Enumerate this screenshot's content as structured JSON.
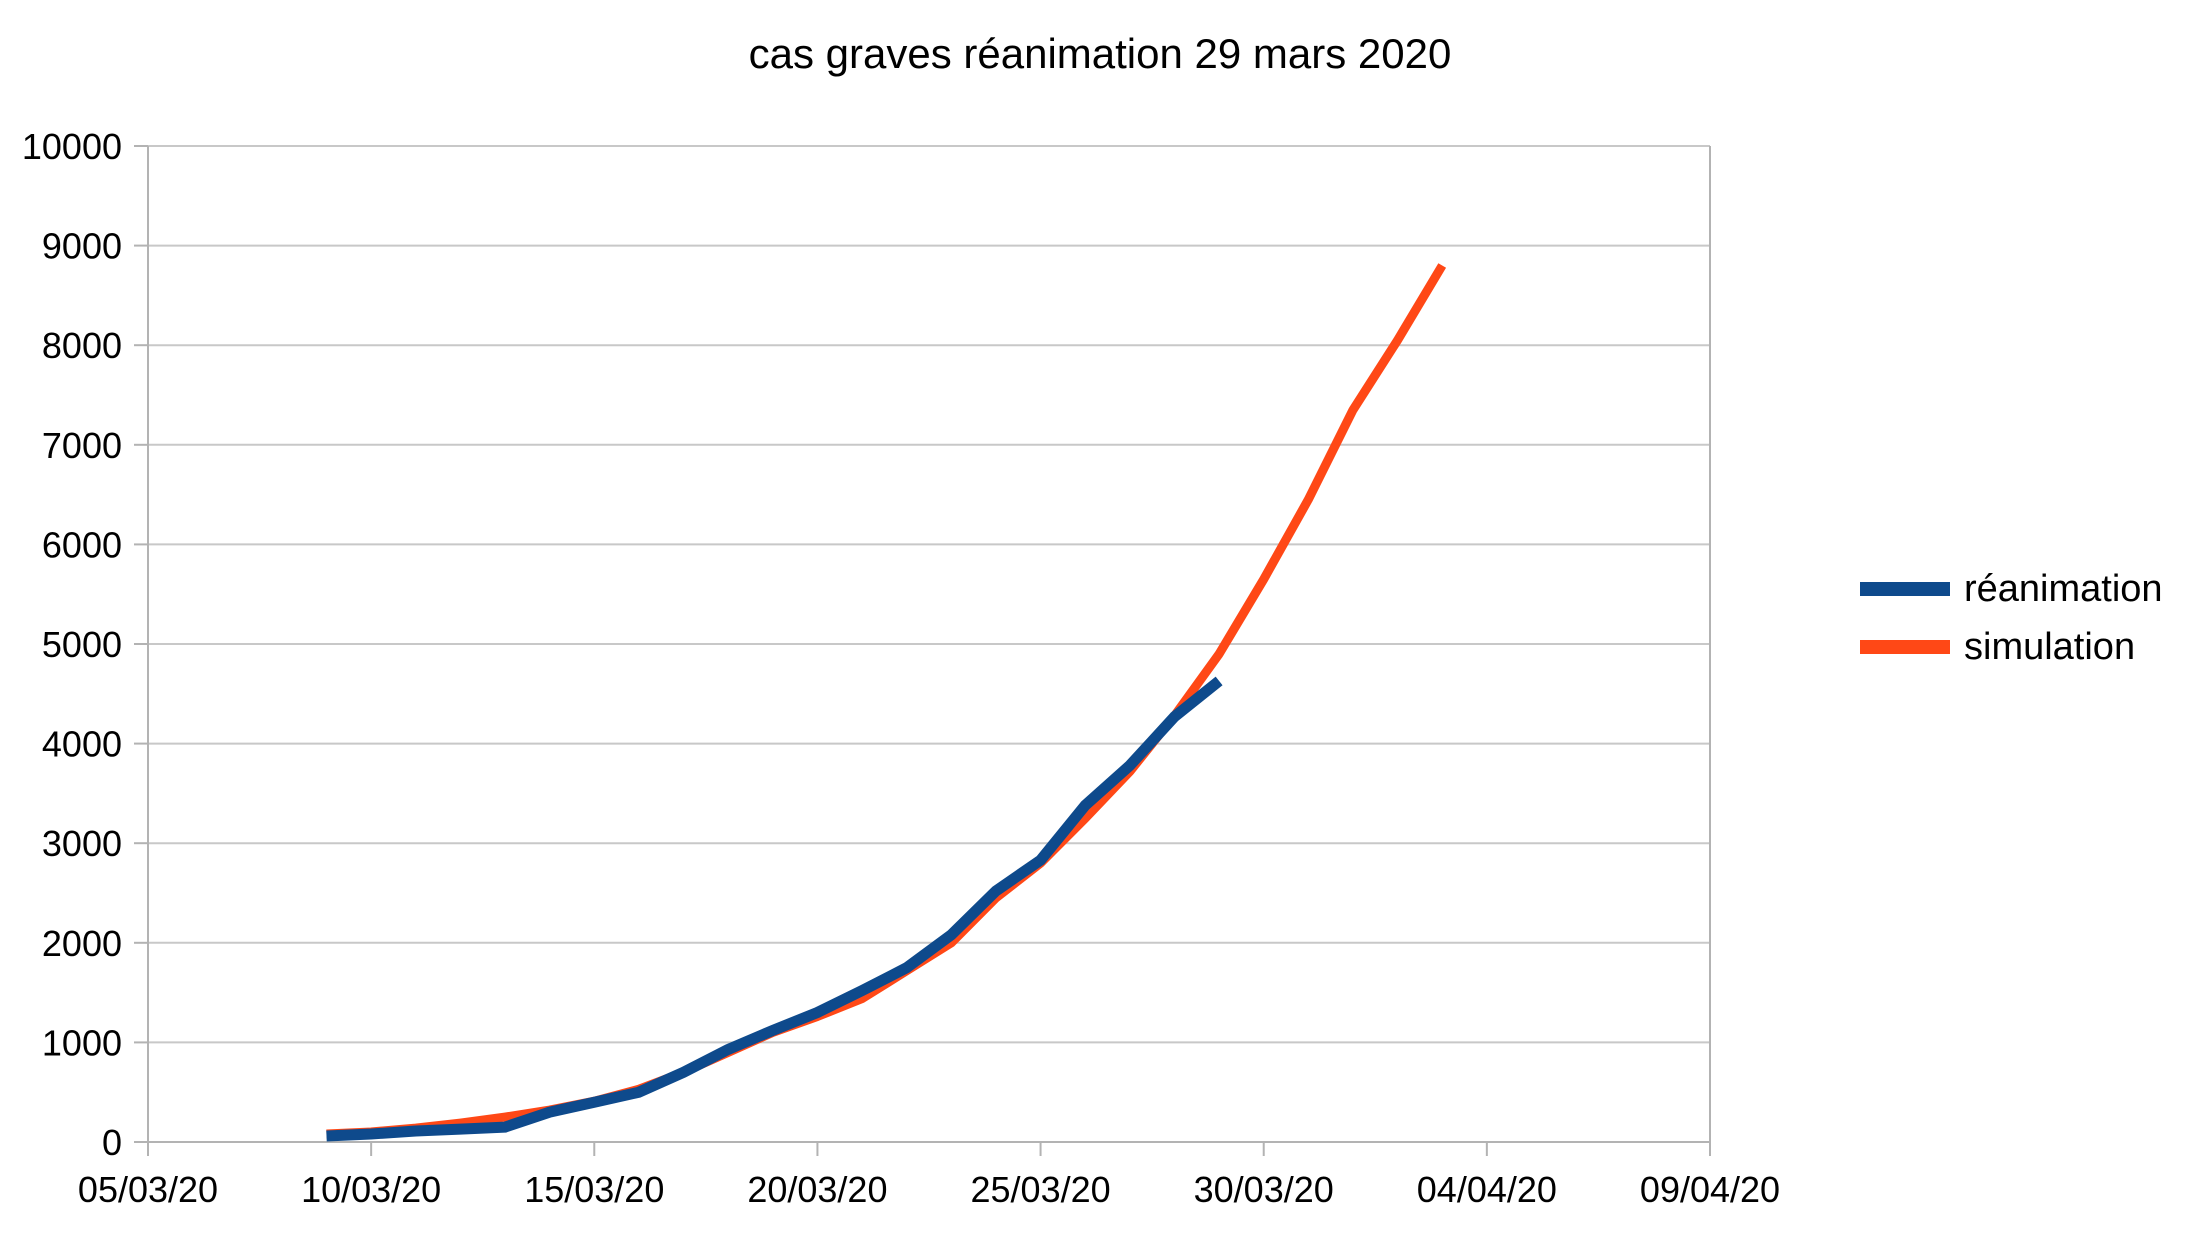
{
  "chart_data": {
    "type": "line",
    "title": "cas graves réanimation 29 mars 2020",
    "xlabel": "",
    "ylabel": "",
    "x_axis": {
      "type": "date",
      "min": "2020-03-05",
      "max": "2020-04-09",
      "tick_labels": [
        "05/03/20",
        "10/03/20",
        "15/03/20",
        "20/03/20",
        "25/03/20",
        "30/03/20",
        "04/04/20",
        "09/04/20"
      ]
    },
    "y_axis": {
      "min": 0,
      "max": 10000,
      "tick_labels": [
        "0",
        "1000",
        "2000",
        "3000",
        "4000",
        "5000",
        "6000",
        "7000",
        "8000",
        "9000",
        "10000"
      ]
    },
    "grid": "horizontal",
    "legend": "right",
    "series": [
      {
        "name": "réanimation",
        "color": "#0e4a8c",
        "points": [
          [
            "2020-03-09",
            60
          ],
          [
            "2020-03-10",
            80
          ],
          [
            "2020-03-11",
            110
          ],
          [
            "2020-03-12",
            130
          ],
          [
            "2020-03-13",
            150
          ],
          [
            "2020-03-14",
            300
          ],
          [
            "2020-03-15",
            400
          ],
          [
            "2020-03-16",
            500
          ],
          [
            "2020-03-17",
            700
          ],
          [
            "2020-03-18",
            930
          ],
          [
            "2020-03-19",
            1120
          ],
          [
            "2020-03-20",
            1300
          ],
          [
            "2020-03-21",
            1520
          ],
          [
            "2020-03-22",
            1750
          ],
          [
            "2020-03-23",
            2080
          ],
          [
            "2020-03-24",
            2520
          ],
          [
            "2020-03-25",
            2830
          ],
          [
            "2020-03-26",
            3380
          ],
          [
            "2020-03-27",
            3780
          ],
          [
            "2020-03-28",
            4270
          ],
          [
            "2020-03-29",
            4630
          ]
        ]
      },
      {
        "name": "simulation",
        "color": "#ff4816",
        "points": [
          [
            "2020-03-09",
            80
          ],
          [
            "2020-03-10",
            100
          ],
          [
            "2020-03-11",
            140
          ],
          [
            "2020-03-12",
            190
          ],
          [
            "2020-03-13",
            250
          ],
          [
            "2020-03-14",
            320
          ],
          [
            "2020-03-15",
            410
          ],
          [
            "2020-03-16",
            530
          ],
          [
            "2020-03-17",
            700
          ],
          [
            "2020-03-18",
            900
          ],
          [
            "2020-03-19",
            1100
          ],
          [
            "2020-03-20",
            1260
          ],
          [
            "2020-03-21",
            1440
          ],
          [
            "2020-03-22",
            1720
          ],
          [
            "2020-03-23",
            2000
          ],
          [
            "2020-03-24",
            2450
          ],
          [
            "2020-03-25",
            2800
          ],
          [
            "2020-03-26",
            3250
          ],
          [
            "2020-03-27",
            3720
          ],
          [
            "2020-03-28",
            4280
          ],
          [
            "2020-03-29",
            4900
          ],
          [
            "2020-03-30",
            5650
          ],
          [
            "2020-03-31",
            6450
          ],
          [
            "2020-04-01",
            7350
          ],
          [
            "2020-04-02",
            8050
          ],
          [
            "2020-04-03",
            8800
          ]
        ]
      }
    ]
  }
}
